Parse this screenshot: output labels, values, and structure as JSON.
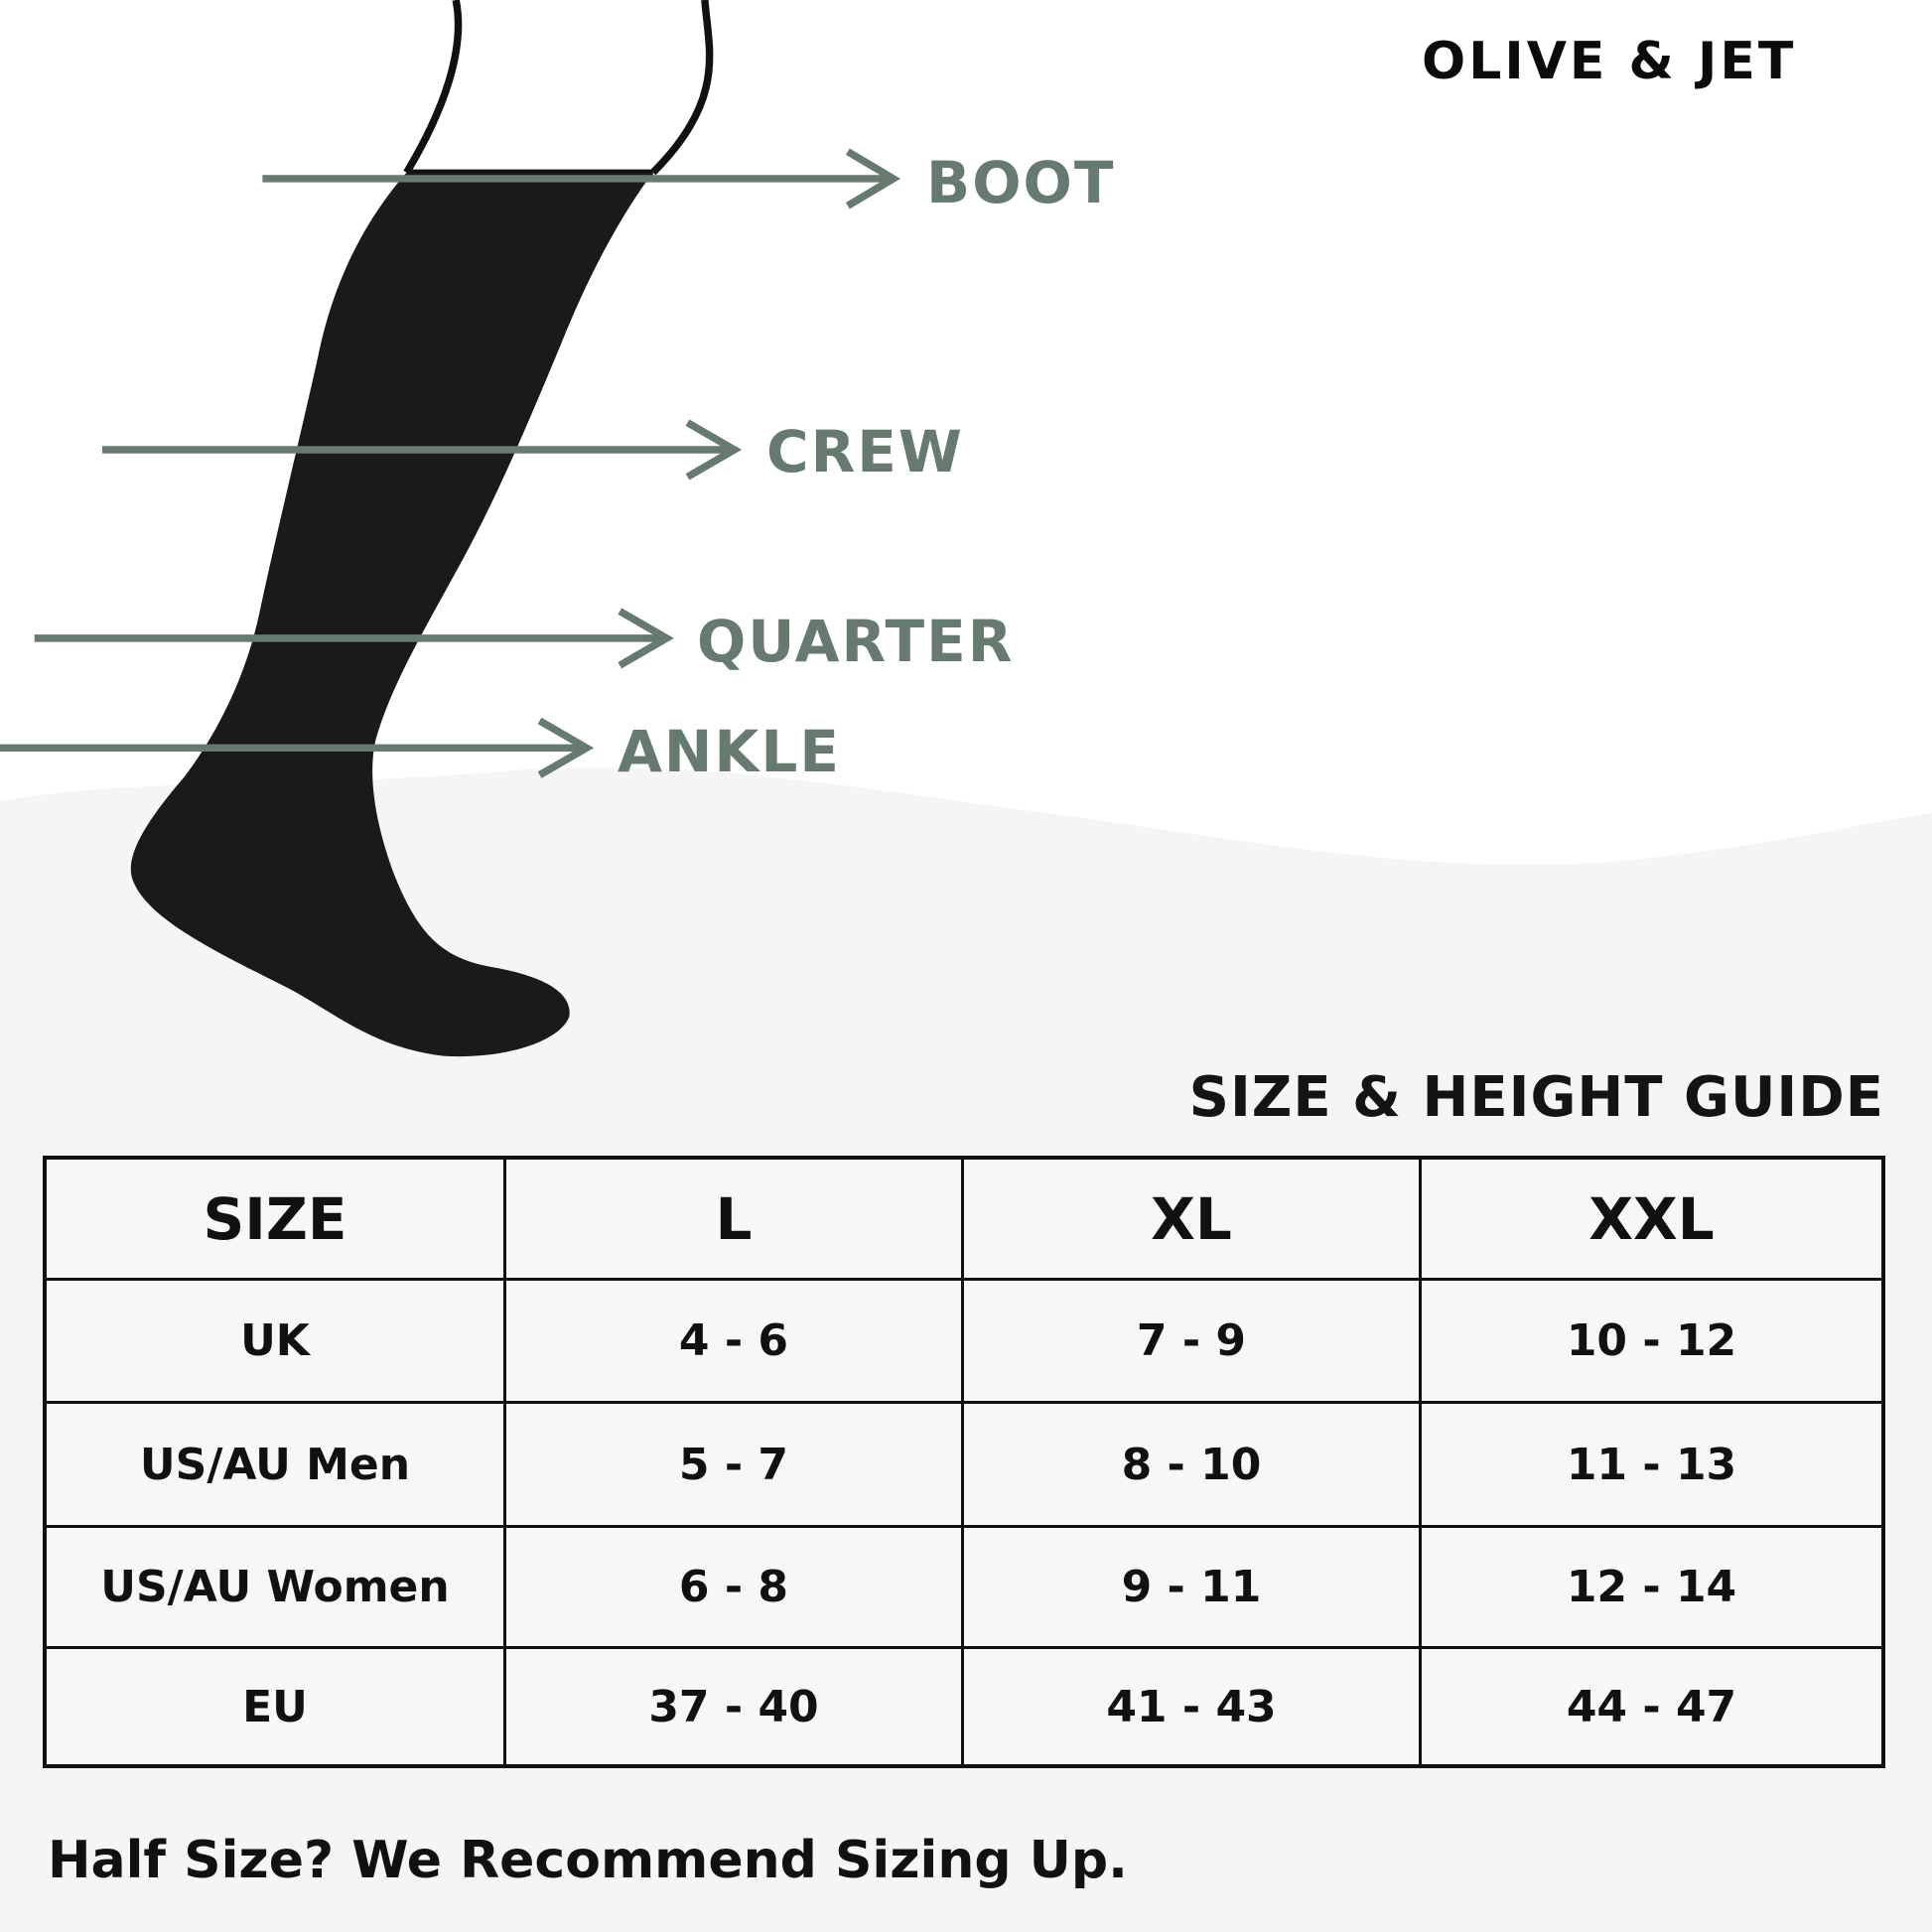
{
  "brand": "OLIVE & JET",
  "accent_color": "#677a70",
  "sock_color": "#1a1a1a",
  "heights": [
    {
      "label": "BOOT"
    },
    {
      "label": "CREW"
    },
    {
      "label": "QUARTER"
    },
    {
      "label": "ANKLE"
    }
  ],
  "guide_title": "SIZE & HEIGHT GUIDE",
  "table": {
    "headers": [
      "SIZE",
      "L",
      "XL",
      "XXL"
    ],
    "rows": [
      [
        "UK",
        "4 - 6",
        "7 - 9",
        "10 - 12"
      ],
      [
        "US/AU Men",
        "5 - 7",
        "8 - 10",
        "11 - 13"
      ],
      [
        "US/AU Women",
        "6 - 8",
        "9 - 11",
        "12 - 14"
      ],
      [
        "EU",
        "37 - 40",
        "41 - 43",
        "44 - 47"
      ]
    ]
  },
  "footer_note": "Half Size? We Recommend Sizing Up."
}
